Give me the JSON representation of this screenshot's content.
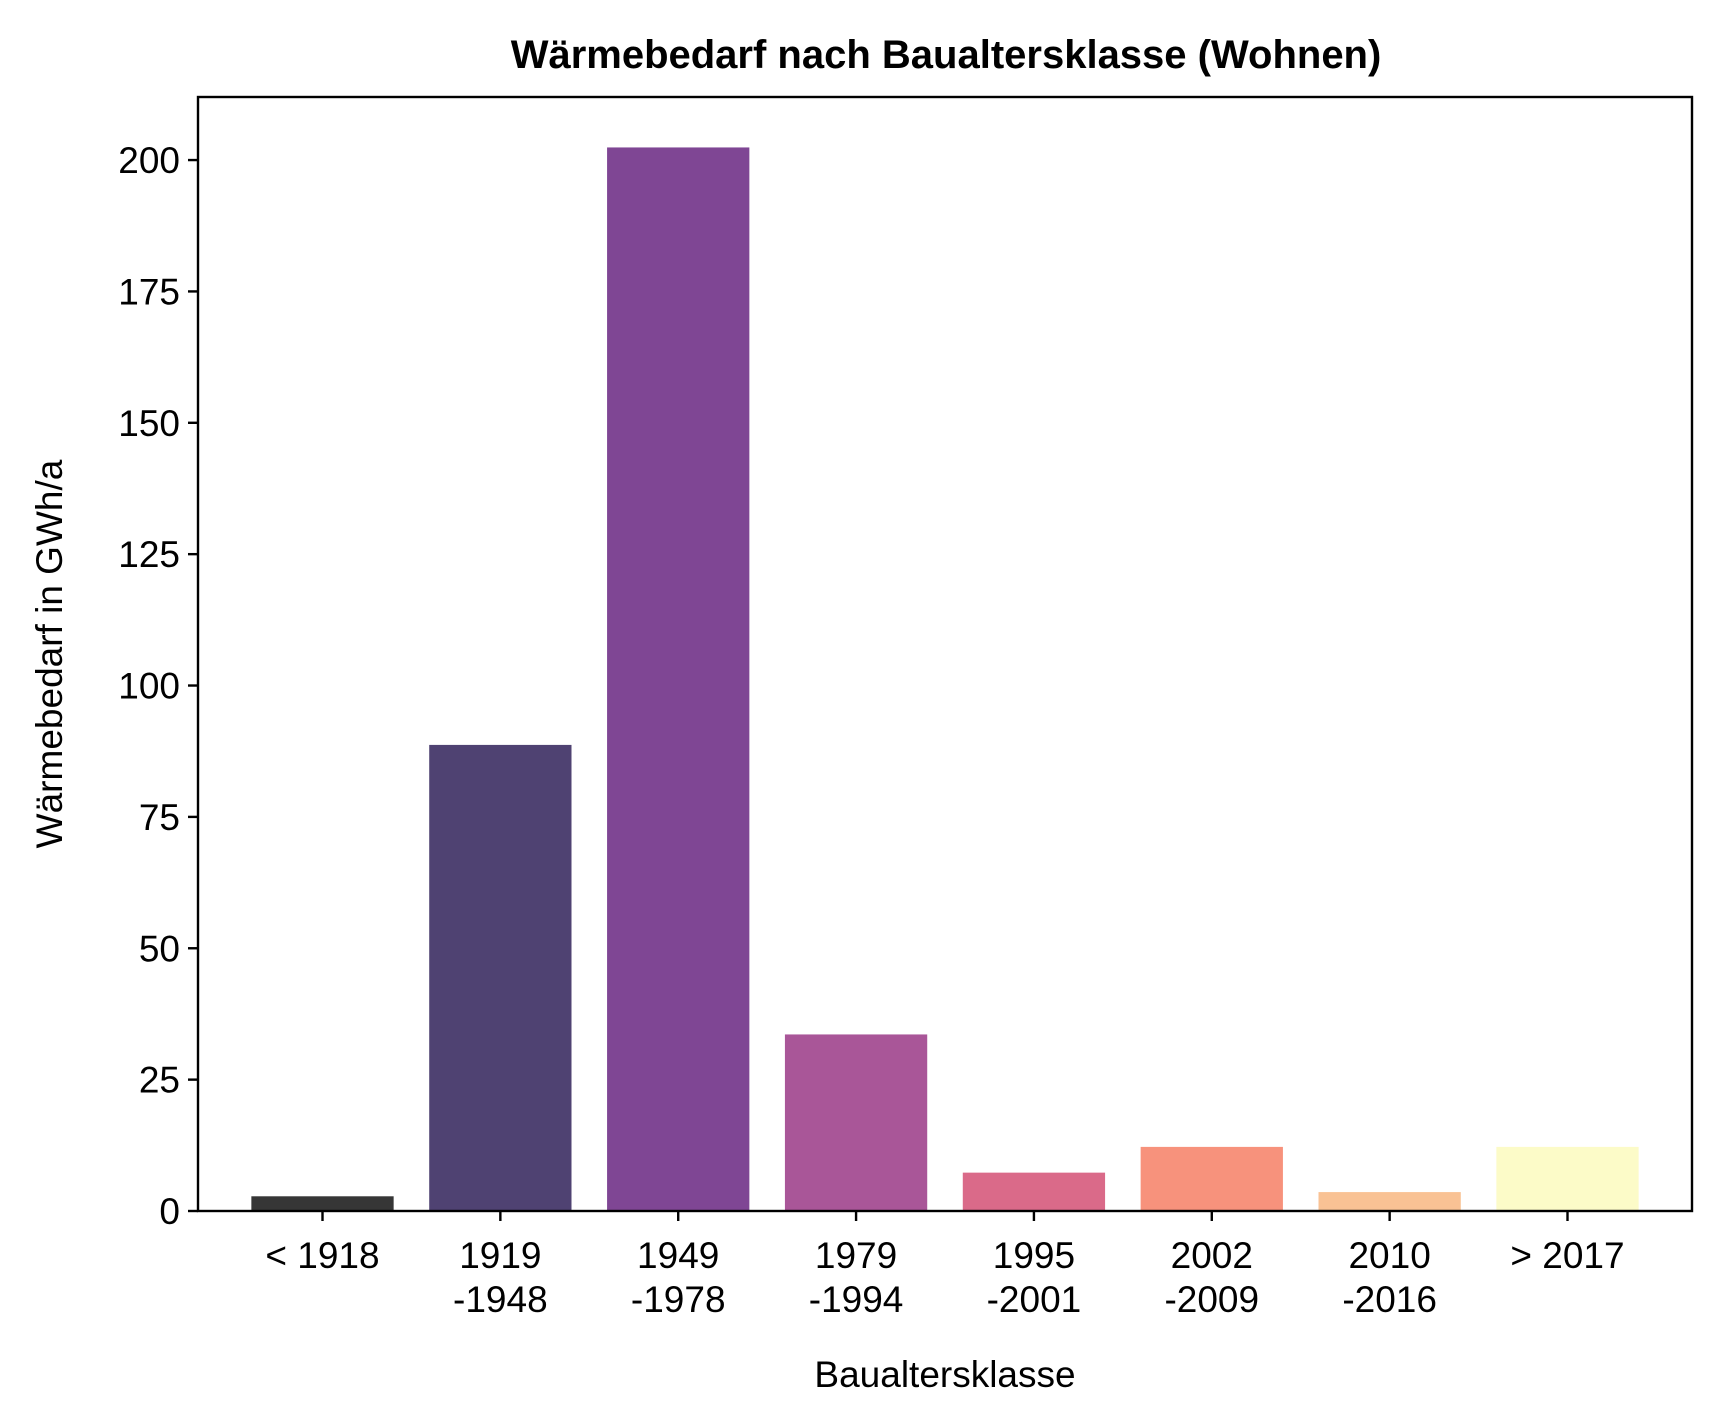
{
  "chart_data": {
    "type": "bar",
    "title": "Wärmebedarf nach Baualtersklasse (Wohnen)",
    "xlabel": "Baualtersklasse",
    "ylabel": "Wärmebedarf in GWh/a",
    "ylim": [
      0,
      212
    ],
    "yticks": [
      0,
      25,
      50,
      75,
      100,
      125,
      150,
      175,
      200
    ],
    "categories": [
      [
        "< 1918"
      ],
      [
        "1919",
        "-1948"
      ],
      [
        "1949",
        "-1978"
      ],
      [
        "1979",
        "-1994"
      ],
      [
        "1995",
        "-2001"
      ],
      [
        "2002",
        "-2009"
      ],
      [
        "2010",
        "-2016"
      ],
      [
        "> 2017"
      ]
    ],
    "values": [
      2.8,
      88.7,
      202.4,
      33.6,
      7.3,
      12.2,
      3.6,
      12.2
    ],
    "colors": [
      "#363636",
      "#4f4272",
      "#7f4694",
      "#a95698",
      "#da6a89",
      "#f7927c",
      "#f9c294",
      "#fcfbc8"
    ],
    "grid": false,
    "legend": "none"
  }
}
